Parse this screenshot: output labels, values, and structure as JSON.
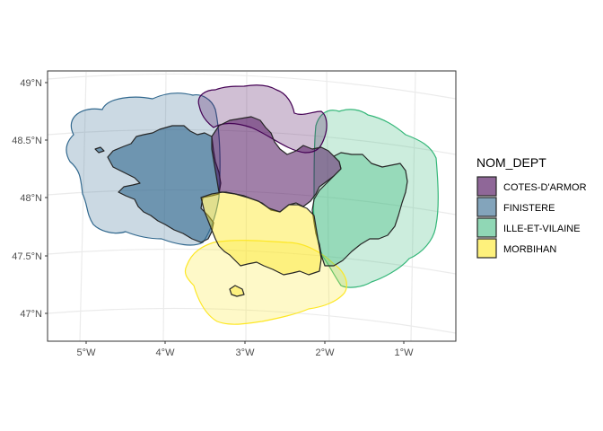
{
  "map": {
    "legend_title": "NOM_DEPT",
    "departments": [
      {
        "name": "COTES-D'ARMOR",
        "color": "#440154"
      },
      {
        "name": "FINISTERE",
        "color": "#31688E"
      },
      {
        "name": "ILLE-ET-VILAINE",
        "color": "#35B779"
      },
      {
        "name": "MORBIHAN",
        "color": "#FDE725"
      }
    ],
    "x_ticks": [
      "5°W",
      "4°W",
      "3°W",
      "2°W",
      "1°W"
    ],
    "y_ticks": [
      "49°N",
      "48.5°N",
      "48°N",
      "47.5°N",
      "47°N"
    ],
    "panel_background": "#ffffff",
    "grid": true,
    "legend_position": "right"
  }
}
